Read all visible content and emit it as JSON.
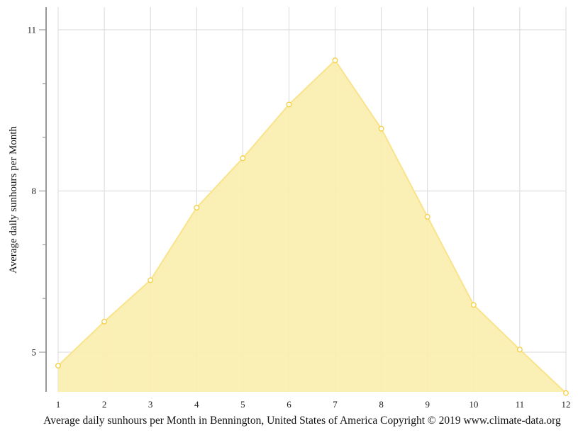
{
  "chart_data": {
    "type": "area",
    "title": "",
    "caption": "Average daily sunhours per Month in Bennington, United States of America Copyright © 2019 www.climate-data.org",
    "xlabel": "",
    "ylabel": "Average daily sunhours per Month",
    "categories": [
      "1",
      "2",
      "3",
      "4",
      "5",
      "6",
      "7",
      "8",
      "9",
      "10",
      "11",
      "12"
    ],
    "series": [
      {
        "name": "Average daily sunhours",
        "values": [
          4.75,
          5.57,
          6.34,
          7.69,
          8.61,
          9.61,
          10.43,
          9.16,
          7.52,
          5.88,
          5.05,
          4.24
        ]
      }
    ],
    "ylim": [
      4.25,
      11.4
    ],
    "yticks_major": [
      5,
      8,
      11
    ],
    "yticks_minor": [
      6,
      7,
      9,
      10
    ],
    "grid": true,
    "legend": "none"
  },
  "colors": {
    "fill": "#faeeb0",
    "line": "#f9e38b",
    "marker_stroke": "#f5cf3c",
    "marker_fill": "#ffffff",
    "grid": "#d8d8d8",
    "axis": "#555555"
  }
}
